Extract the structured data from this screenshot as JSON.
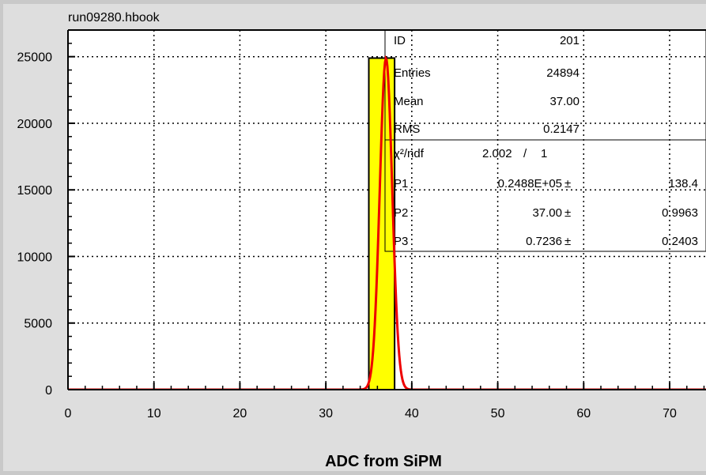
{
  "file_title": "run09280.hbook",
  "stats": {
    "id_label": "ID",
    "id_value": "201",
    "entries_label": "Entries",
    "entries_value": "24894",
    "mean_label": "Mean",
    "mean_value": "37.00",
    "rms_label": "RMS",
    "rms_value": "0.2147"
  },
  "fit": {
    "chi2_label": "χ²/ndf",
    "chi2_value": "2.002",
    "slash": "/",
    "ndf_value": "1",
    "params": [
      {
        "label": "P1",
        "value": "0.2488E+05",
        "pm": "±",
        "error": "138.4"
      },
      {
        "label": "P2",
        "value": "37.00",
        "pm": "±",
        "error": "0.9963"
      },
      {
        "label": "P3",
        "value": "0.7236",
        "pm": "±",
        "error": "0.2403"
      }
    ]
  },
  "colors": {
    "histogram_fill": "#ffff00",
    "fit_line": "#ee0000",
    "frame": "#000000",
    "plot_bg": "#ffffff",
    "page_bg": "#c9c9c9"
  },
  "chart_data": {
    "type": "bar",
    "title": "run09280.hbook",
    "xlabel": "ADC from SiPM",
    "ylabel": "",
    "xlim": [
      0,
      80
    ],
    "ylim": [
      0,
      27000
    ],
    "x_ticks": [
      0,
      10,
      20,
      30,
      40,
      50,
      60,
      70
    ],
    "y_ticks": [
      0,
      5000,
      10000,
      15000,
      20000,
      25000
    ],
    "grid": true,
    "bins": [
      {
        "x_low": 35,
        "x_high": 38,
        "value": 24894
      }
    ],
    "fit_function": {
      "type": "gaussian",
      "amplitude": 24880,
      "mean": 37.0,
      "sigma": 0.7236
    }
  }
}
